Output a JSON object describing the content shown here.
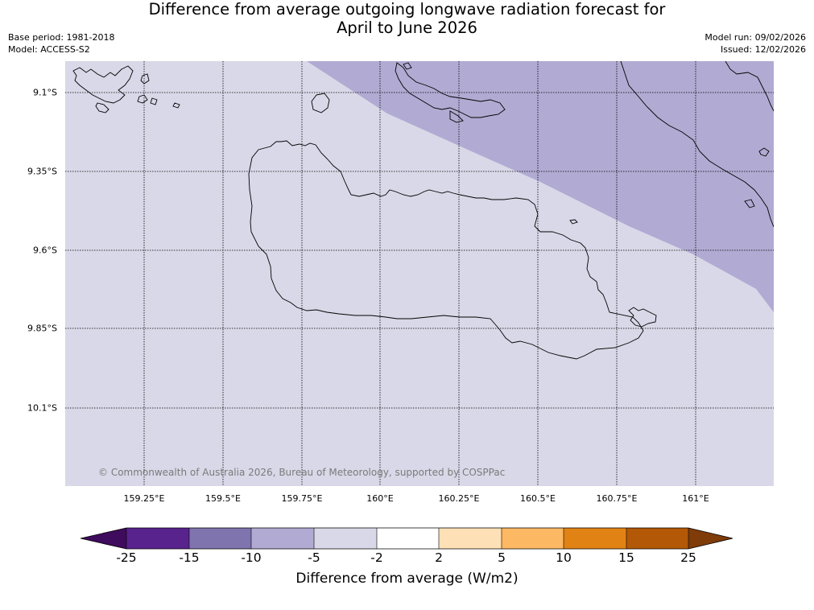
{
  "title": {
    "line1": "Difference from average outgoing longwave radiation forecast for",
    "line2": "April to June 2026"
  },
  "meta": {
    "base_period": "Base period: 1981-2018",
    "model": "Model: ACCESS-S2",
    "model_run": "Model run: 09/02/2026",
    "issued": "Issued: 12/02/2026"
  },
  "map": {
    "lat_labels": [
      "9.1°S",
      "9.35°S",
      "9.6°S",
      "9.85°S",
      "10.1°S"
    ],
    "lon_labels": [
      "159.25°E",
      "159.5°E",
      "159.75°E",
      "160°E",
      "160.25°E",
      "160.5°E",
      "160.75°E",
      "161°E"
    ],
    "copyright": "© Commonwealth of Australia 2026, Bureau of Meteorology, supported by COSPPac",
    "region_colors": {
      "range_neg5_to_neg2": "#d8d8e8",
      "range_neg10_to_neg5": "#b1aad2"
    }
  },
  "colorbar": {
    "title": "Difference from average (W/m2)",
    "tick_labels": [
      "-25",
      "-15",
      "-10",
      "-5",
      "-2",
      "2",
      "5",
      "10",
      "15",
      "25"
    ],
    "colors": [
      "#3f0b5c",
      "#58238d",
      "#7f74ae",
      "#b1aad2",
      "#d8d8e8",
      "#ffffff",
      "#fee0b6",
      "#fdb863",
      "#e08214",
      "#b35806",
      "#7f3b08"
    ]
  }
}
